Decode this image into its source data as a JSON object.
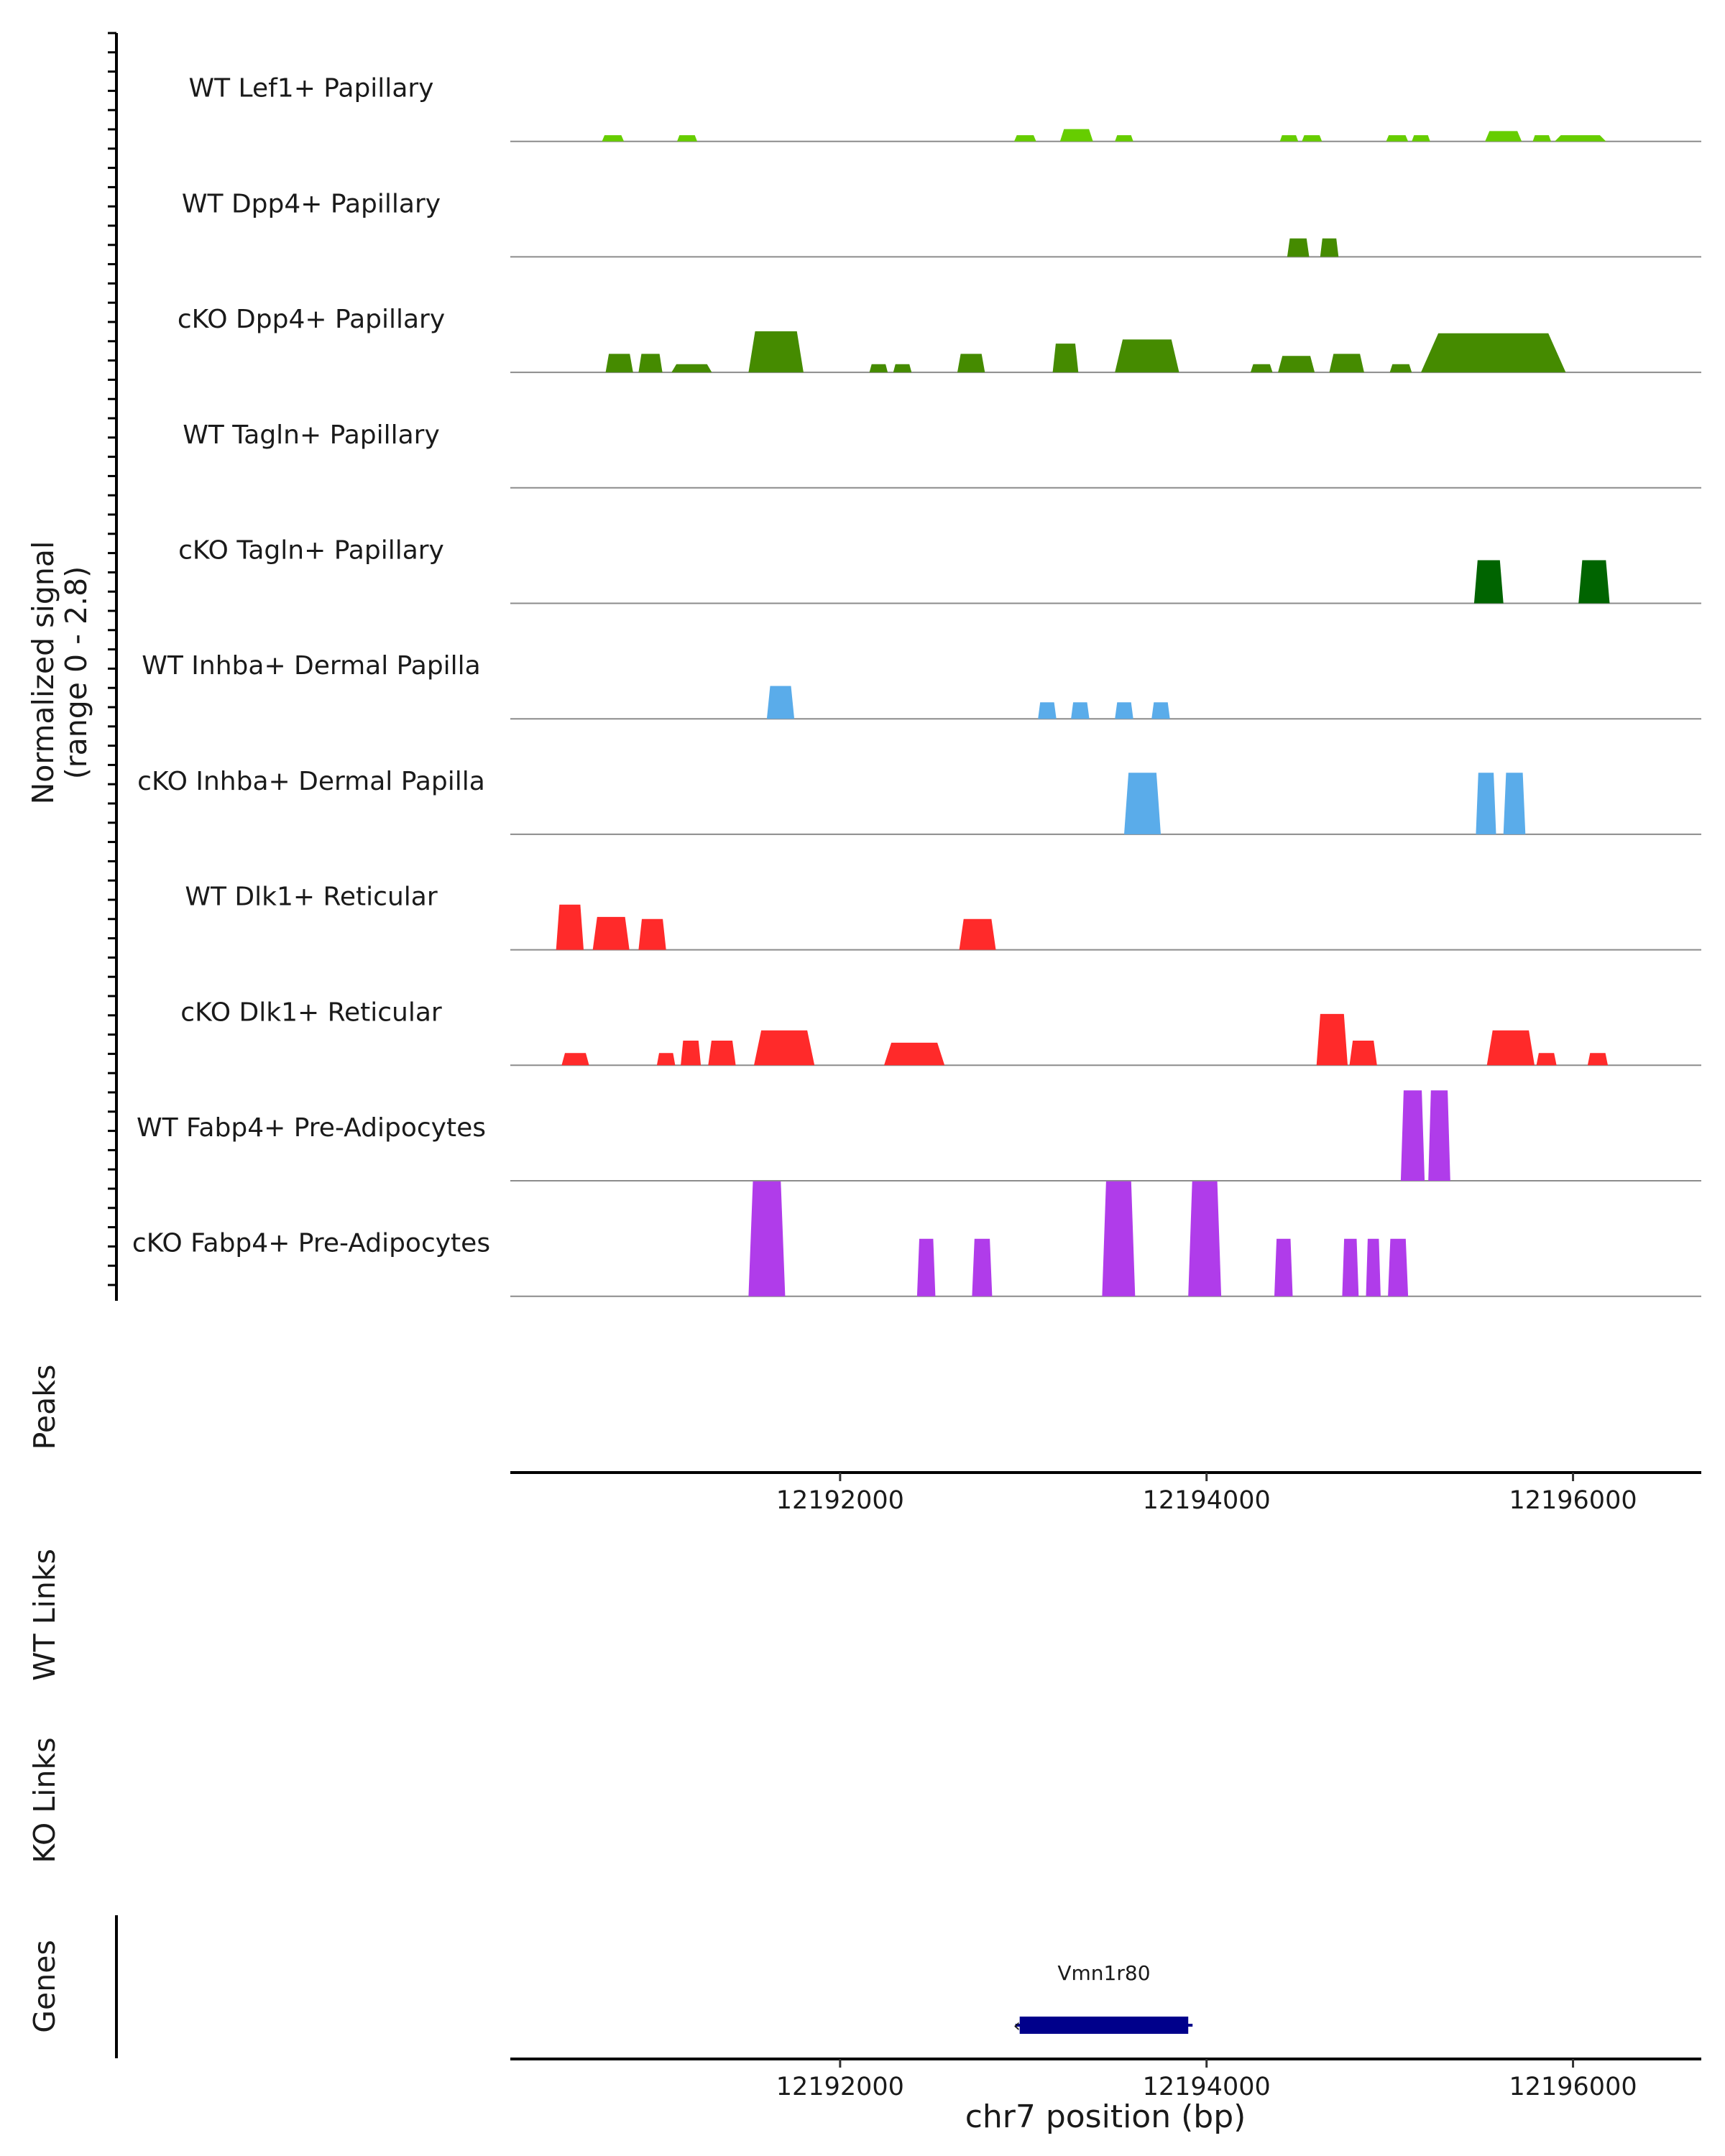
{
  "chart_data": {
    "type": "area",
    "chromosome": "chr7",
    "xlim": [
      12190200,
      12196700
    ],
    "x_ticks": [
      12192000,
      12194000,
      12196000
    ],
    "x_tick_labels": [
      "12192000",
      "12194000",
      "12196000"
    ],
    "xlabel": "chr7 position (bp)",
    "ylabel_line1": "Normalized signal",
    "ylabel_line2": "(range 0 - 2.8)",
    "ylim": [
      0,
      2.8
    ],
    "grid": false,
    "legend": "none",
    "tracks": [
      {
        "name": "WT Lef1+ Papillary",
        "color": "#66cd00",
        "peaks": [
          [
            12190700,
            12190820,
            0.15
          ],
          [
            12191110,
            12191220,
            0.15
          ],
          [
            12192950,
            12193070,
            0.15
          ],
          [
            12193200,
            12193380,
            0.3
          ],
          [
            12193500,
            12193600,
            0.15
          ],
          [
            12194400,
            12194500,
            0.15
          ],
          [
            12194520,
            12194630,
            0.15
          ],
          [
            12194980,
            12195100,
            0.15
          ],
          [
            12195120,
            12195220,
            0.15
          ],
          [
            12195520,
            12195720,
            0.25
          ],
          [
            12195780,
            12195880,
            0.15
          ],
          [
            12195900,
            12196180,
            0.15
          ]
        ]
      },
      {
        "name": "WT Dpp4+ Papillary",
        "color": "#458b00",
        "peaks": [
          [
            12194440,
            12194560,
            0.45
          ],
          [
            12194620,
            12194720,
            0.45
          ]
        ]
      },
      {
        "name": "cKO Dpp4+ Papillary",
        "color": "#458b00",
        "peaks": [
          [
            12190720,
            12190870,
            0.45
          ],
          [
            12190900,
            12191030,
            0.45
          ],
          [
            12191080,
            12191300,
            0.2
          ],
          [
            12191500,
            12191800,
            1.0
          ],
          [
            12192160,
            12192260,
            0.2
          ],
          [
            12192290,
            12192390,
            0.2
          ],
          [
            12192640,
            12192790,
            0.45
          ],
          [
            12193160,
            12193300,
            0.7
          ],
          [
            12193500,
            12193850,
            0.8
          ],
          [
            12194240,
            12194360,
            0.2
          ],
          [
            12194390,
            12194590,
            0.4
          ],
          [
            12194670,
            12194860,
            0.45
          ],
          [
            12195000,
            12195120,
            0.2
          ],
          [
            12195170,
            12195960,
            0.95
          ]
        ]
      },
      {
        "name": "WT Tagln+ Papillary",
        "color": "#006400",
        "peaks": []
      },
      {
        "name": "cKO Tagln+ Papillary",
        "color": "#006400",
        "peaks": [
          [
            12195460,
            12195620,
            1.05
          ],
          [
            12196030,
            12196200,
            1.05
          ]
        ]
      },
      {
        "name": "WT Inhba+ Dermal Papilla",
        "color": "#5aacea",
        "peaks": [
          [
            12191600,
            12191750,
            0.8
          ],
          [
            12193080,
            12193180,
            0.4
          ],
          [
            12193260,
            12193360,
            0.4
          ],
          [
            12193500,
            12193600,
            0.4
          ],
          [
            12193700,
            12193800,
            0.4
          ]
        ]
      },
      {
        "name": "cKO Inhba+ Dermal Papilla",
        "color": "#5aacea",
        "peaks": [
          [
            12193550,
            12193750,
            1.5
          ],
          [
            12195470,
            12195580,
            1.5
          ],
          [
            12195620,
            12195740,
            1.5
          ]
        ]
      },
      {
        "name": "WT Dlk1+ Reticular",
        "color": "#ff2a2a",
        "peaks": [
          [
            12190450,
            12190600,
            1.1
          ],
          [
            12190650,
            12190850,
            0.8
          ],
          [
            12190900,
            12191050,
            0.75
          ],
          [
            12192650,
            12192850,
            0.75
          ]
        ]
      },
      {
        "name": "cKO Dlk1+ Reticular",
        "color": "#ff2a2a",
        "peaks": [
          [
            12190480,
            12190630,
            0.3
          ],
          [
            12191000,
            12191100,
            0.3
          ],
          [
            12191130,
            12191240,
            0.6
          ],
          [
            12191280,
            12191430,
            0.6
          ],
          [
            12191530,
            12191860,
            0.85
          ],
          [
            12192240,
            12192570,
            0.55
          ],
          [
            12194600,
            12194770,
            1.25
          ],
          [
            12194780,
            12194930,
            0.6
          ],
          [
            12195530,
            12195790,
            0.85
          ],
          [
            12195800,
            12195910,
            0.3
          ],
          [
            12196080,
            12196190,
            0.3
          ]
        ]
      },
      {
        "name": "WT Fabp4+ Pre-Adipocytes",
        "color": "#b03cea",
        "peaks": [
          [
            12195060,
            12195190,
            2.2
          ],
          [
            12195210,
            12195330,
            2.2
          ]
        ]
      },
      {
        "name": "cKO Fabp4+ Pre-Adipocytes",
        "color": "#b03cea",
        "peaks": [
          [
            12191500,
            12191700,
            2.8
          ],
          [
            12192420,
            12192520,
            1.4
          ],
          [
            12192720,
            12192830,
            1.4
          ],
          [
            12193430,
            12193610,
            2.8
          ],
          [
            12193900,
            12194080,
            2.8
          ],
          [
            12194370,
            12194470,
            1.4
          ],
          [
            12194740,
            12194830,
            1.4
          ],
          [
            12194870,
            12194950,
            1.4
          ],
          [
            12194990,
            12195100,
            1.4
          ]
        ]
      }
    ],
    "panels": {
      "peaks_label": "Peaks",
      "wt_links_label": "WT Links",
      "ko_links_label": "KO Links",
      "genes_label": "Genes"
    },
    "genes": [
      {
        "name": "Vmn1r80",
        "start": 12192980,
        "end": 12193900,
        "strand": "-",
        "color": "#00008b"
      }
    ]
  }
}
